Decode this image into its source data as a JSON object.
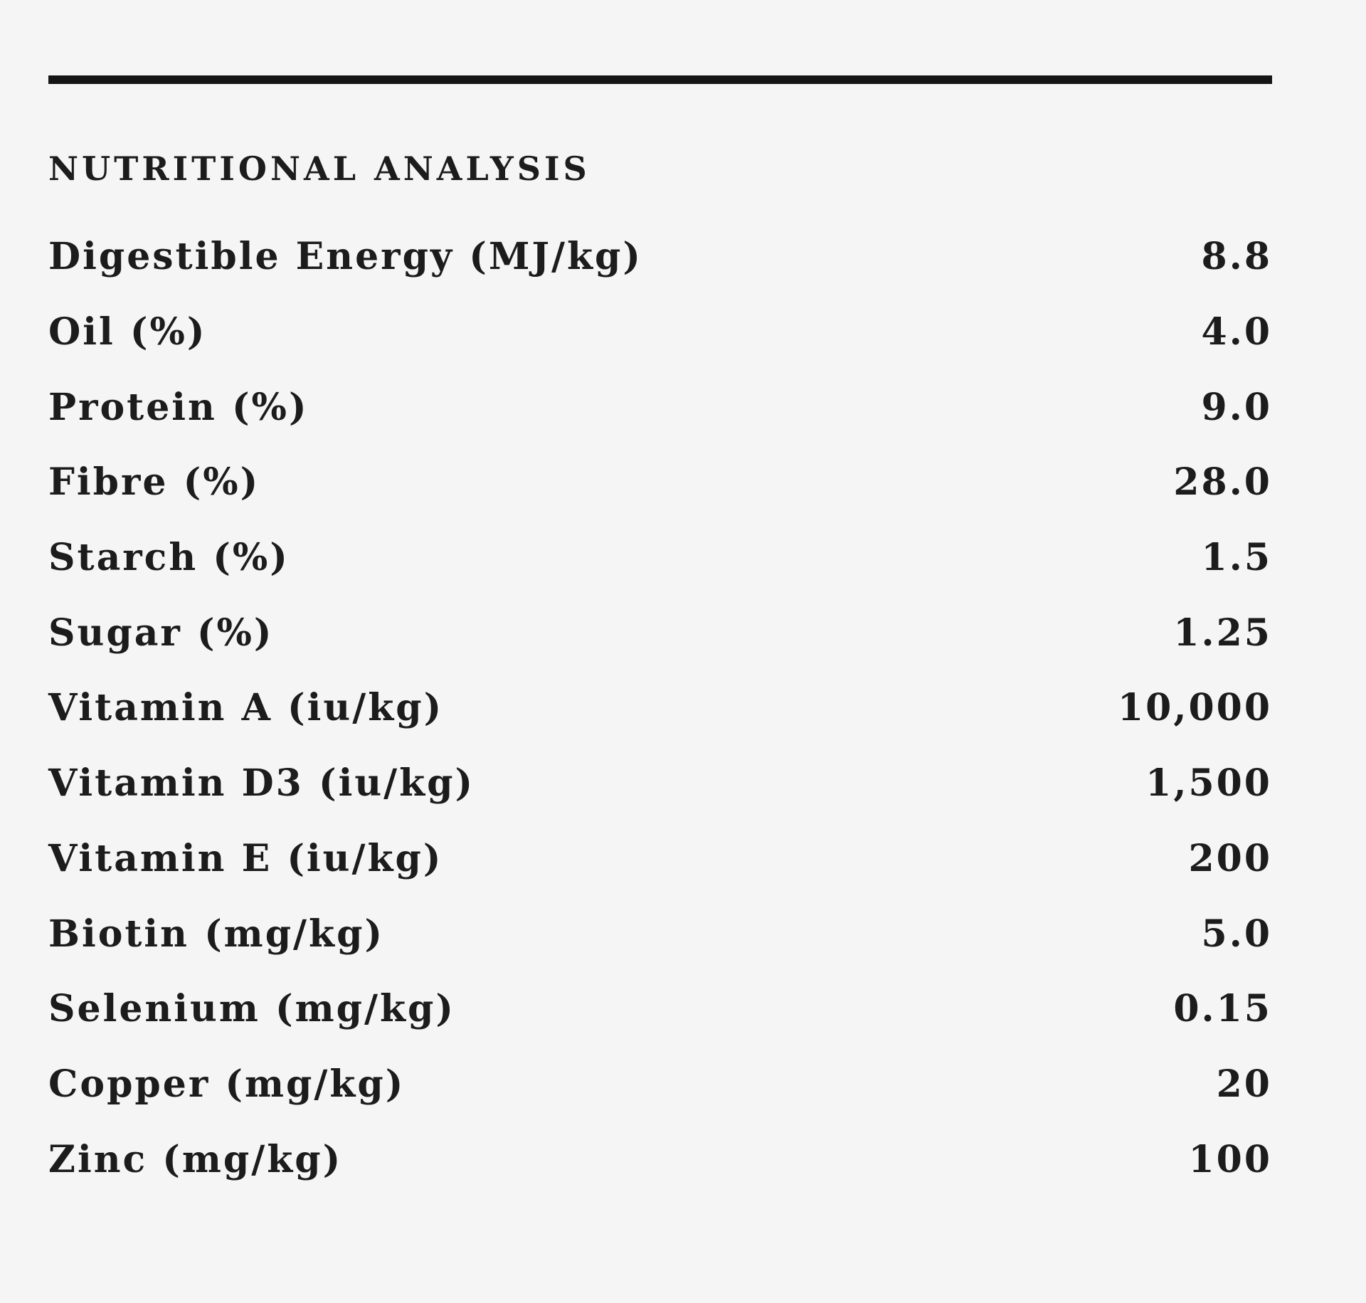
{
  "section": {
    "heading": "NUTRITIONAL ANALYSIS",
    "rows": [
      {
        "label": "Digestible Energy (MJ/kg)",
        "value": "8.8"
      },
      {
        "label": "Oil (%)",
        "value": "4.0"
      },
      {
        "label": "Protein (%)",
        "value": "9.0"
      },
      {
        "label": "Fibre (%)",
        "value": "28.0"
      },
      {
        "label": "Starch (%)",
        "value": "1.5"
      },
      {
        "label": "Sugar (%)",
        "value": "1.25"
      },
      {
        "label": "Vitamin A (iu/kg)",
        "value": "10,000"
      },
      {
        "label": "Vitamin D3 (iu/kg)",
        "value": "1,500"
      },
      {
        "label": "Vitamin E (iu/kg)",
        "value": "200"
      },
      {
        "label": "Biotin (mg/kg)",
        "value": "5.0"
      },
      {
        "label": "Selenium (mg/kg)",
        "value": "0.15"
      },
      {
        "label": "Copper (mg/kg)",
        "value": "20"
      },
      {
        "label": "Zinc (mg/kg)",
        "value": "100"
      }
    ]
  },
  "colors": {
    "background": "#f5f5f5",
    "text": "#1c1c1c",
    "rule": "#151515"
  }
}
